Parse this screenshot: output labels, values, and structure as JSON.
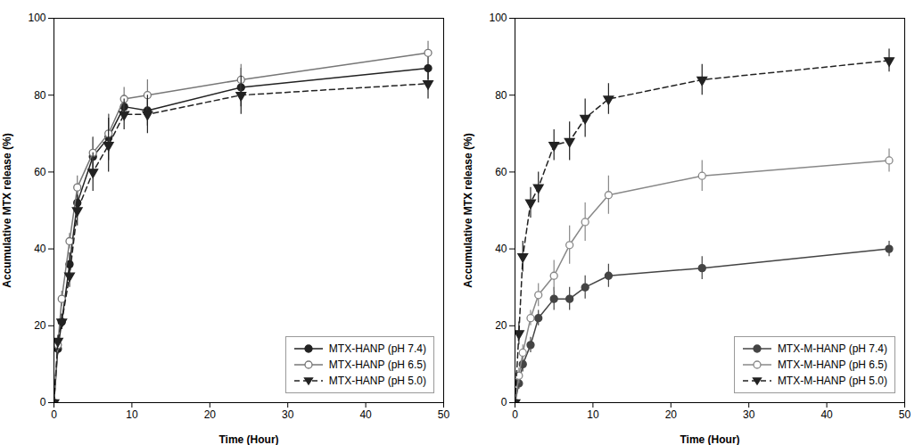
{
  "chart_data": [
    {
      "type": "line",
      "xlabel": "Time (Hour)",
      "ylabel": "Accumulative MTX release (%)",
      "x": [
        0,
        0.5,
        1,
        2,
        3,
        5,
        7,
        9,
        12,
        24,
        48
      ],
      "xlim": [
        0,
        50
      ],
      "ylim": [
        0,
        100
      ],
      "xticks": [
        0,
        10,
        20,
        30,
        40,
        50
      ],
      "yticks": [
        0,
        20,
        40,
        60,
        80,
        100
      ],
      "grid": false,
      "legend": "lower right",
      "series": [
        {
          "name": "MTX-HANP (pH 7.4)",
          "color": "#222222",
          "marker": "circle",
          "line_style": "solid",
          "values": [
            0,
            14,
            21,
            36,
            52,
            64,
            69,
            77,
            76,
            82,
            87
          ],
          "yerr": [
            0,
            1.5,
            2,
            3,
            3,
            5,
            6,
            3,
            4,
            5,
            3
          ]
        },
        {
          "name": "MTX-HANP (pH 6.5)",
          "color": "#777777",
          "marker": "circle-open",
          "line_style": "solid",
          "values": [
            0,
            15,
            27,
            42,
            56,
            65,
            70,
            79,
            80,
            84,
            91
          ],
          "yerr": [
            0,
            1.5,
            2,
            2,
            3,
            4,
            5,
            3,
            4,
            4,
            3
          ]
        },
        {
          "name": "MTX-HANP (pH 5.0)",
          "color": "#222222",
          "marker": "triangle-down",
          "line_style": "dashed",
          "values": [
            0,
            16,
            21,
            33,
            50,
            60,
            67,
            75,
            75,
            80,
            83
          ],
          "yerr": [
            0,
            1.5,
            2,
            3,
            4,
            5,
            7,
            4,
            5,
            5,
            4
          ]
        }
      ]
    },
    {
      "type": "line",
      "xlabel": "Time (Hour)",
      "ylabel": "Accumulative MTX release (%)",
      "x": [
        0,
        0.5,
        1,
        2,
        3,
        5,
        7,
        9,
        12,
        24,
        48
      ],
      "xlim": [
        0,
        50
      ],
      "ylim": [
        0,
        100
      ],
      "xticks": [
        0,
        10,
        20,
        30,
        40,
        50
      ],
      "yticks": [
        0,
        20,
        40,
        60,
        80,
        100
      ],
      "grid": false,
      "legend": "lower right",
      "series": [
        {
          "name": "MTX-M-HANP (pH 7.4)",
          "color": "#444444",
          "marker": "circle",
          "line_style": "solid",
          "values": [
            0,
            5,
            10,
            15,
            22,
            27,
            27,
            30,
            33,
            35,
            40
          ],
          "yerr": [
            0,
            1.5,
            2,
            2,
            2,
            3,
            3,
            3,
            3,
            3,
            2
          ]
        },
        {
          "name": "MTX-M-HANP (pH 6.5)",
          "color": "#888888",
          "marker": "circle-open",
          "line_style": "solid",
          "values": [
            0,
            7,
            13,
            22,
            28,
            33,
            41,
            47,
            54,
            59,
            63
          ],
          "yerr": [
            0,
            2,
            2,
            2,
            3,
            4,
            5,
            5,
            5,
            4,
            3
          ]
        },
        {
          "name": "MTX-M-HANP (pH 5.0)",
          "color": "#222222",
          "marker": "triangle-down",
          "line_style": "dashed",
          "values": [
            0,
            18,
            38,
            52,
            56,
            67,
            68,
            74,
            79,
            84,
            89
          ],
          "yerr": [
            0,
            3,
            4,
            4,
            4,
            4,
            5,
            5,
            4,
            4,
            3
          ]
        }
      ]
    }
  ]
}
